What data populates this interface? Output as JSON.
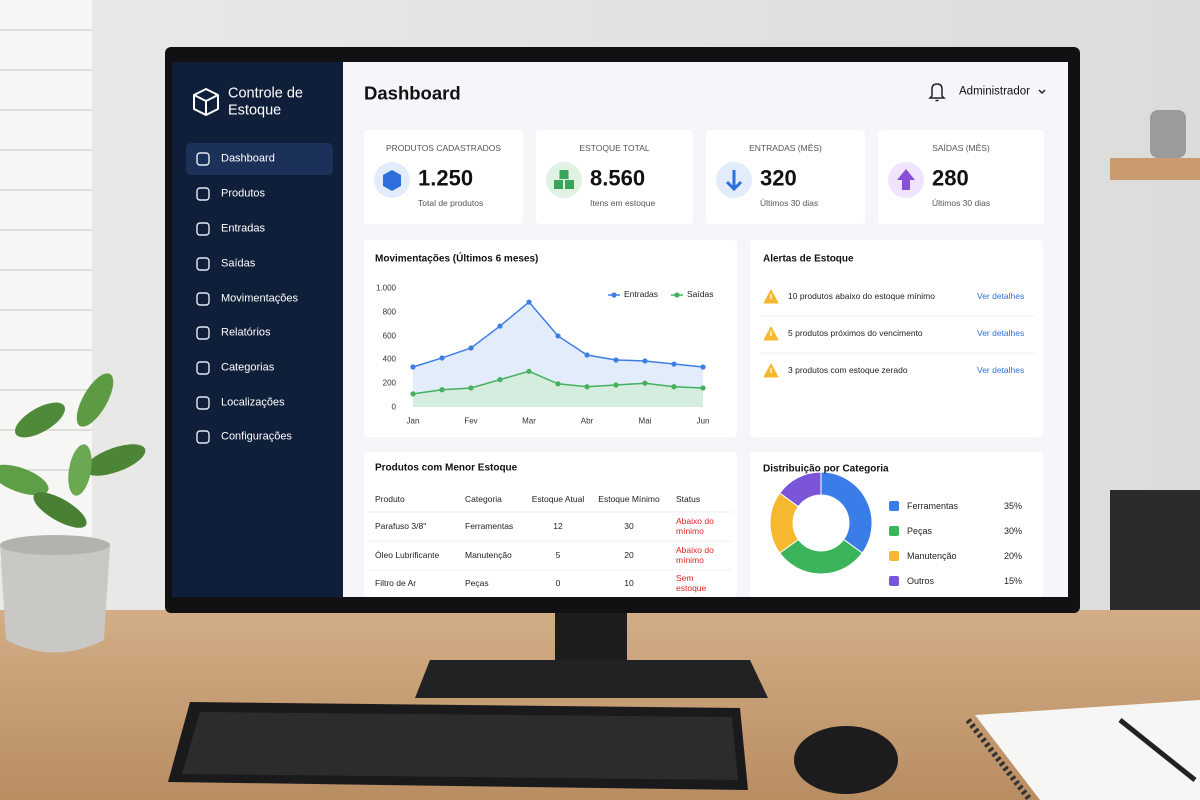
{
  "sidebar": {
    "title": "Controle de Estoque",
    "nav": [
      "Dashboard",
      "Produtos",
      "Entradas",
      "Saídas",
      "Movimentações",
      "Relatórios",
      "Categorias",
      "Localizações",
      "Configurações"
    ]
  },
  "header": {
    "title": "Dashboard",
    "user": "Administrador"
  },
  "cards": [
    {
      "label": "PRODUTOS CADASTRADOS",
      "value": "1.250",
      "sub": "Total de produtos"
    },
    {
      "label": "ESTOQUE TOTAL",
      "value": "8.560",
      "sub": "Itens em estoque"
    },
    {
      "label": "ENTRADAS (MÊS)",
      "value": "320",
      "sub": "Últimos 30 dias"
    },
    {
      "label": "SAÍDAS (MÊS)",
      "value": "280",
      "sub": "Últimos 30 dias"
    }
  ],
  "chart_data": [
    {
      "type": "line",
      "title": "Movimentações (Últimos 6 meses)",
      "categories": [
        "Jan",
        null,
        "Fev",
        null,
        "Mar",
        null,
        "Abr",
        null,
        "Mai",
        null,
        "Jun"
      ],
      "series": [
        {
          "name": "Entradas",
          "color": "#3d7ee6",
          "fill": "#d9e5fa",
          "values": [
            336,
            412,
            496,
            680,
            882,
            597,
            437,
            395,
            387,
            361,
            336
          ]
        },
        {
          "name": "Saídas",
          "color": "#45b05d",
          "fill": "#cfeed6",
          "values": [
            110,
            145,
            160,
            230,
            300,
            195,
            170,
            185,
            200,
            170,
            160
          ]
        }
      ],
      "ylim": [
        0,
        1000
      ],
      "yticks": [
        0,
        200,
        400,
        600,
        800,
        {
          "value": 1000,
          "label": "1.000"
        }
      ],
      "grid": false,
      "legend": "top-right"
    },
    {
      "type": "pie",
      "title": "Distribuição por Categoria",
      "categories": [
        "Ferramentas",
        "Peças",
        "Manutenção",
        "Outros"
      ],
      "values": [
        35,
        30,
        20,
        15
      ],
      "value_labels": [
        "35%",
        "30%",
        "20%",
        "15%"
      ],
      "colors": [
        "#3b7de8",
        "#3cb55a",
        "#f5b82e",
        "#7b55d8"
      ],
      "donut": true
    }
  ],
  "alerts": {
    "title": "Alertas de Estoque",
    "items": [
      {
        "text": "10 produtos abaixo do estoque mínimo",
        "link": "Ver detalhes"
      },
      {
        "text": "5 produtos próximos do vencimento",
        "link": "Ver detalhes"
      },
      {
        "text": "3 produtos com estoque zerado",
        "link": "Ver detalhes"
      }
    ]
  },
  "table": {
    "title": "Produtos com Menor Estoque",
    "headers": [
      "Produto",
      "Categoria",
      "Estoque Atual",
      "Estoque Mínimo",
      "Status"
    ],
    "rows": [
      [
        "Parafuso 3/8\"",
        "Ferramentas",
        12,
        30,
        "Abaixo do mínimo"
      ],
      [
        "Óleo Lubrificante",
        "Manutenção",
        5,
        20,
        "Abaixo do mínimo"
      ],
      [
        "Filtro de Ar",
        "Peças",
        0,
        10,
        "Sem estoque"
      ]
    ]
  }
}
